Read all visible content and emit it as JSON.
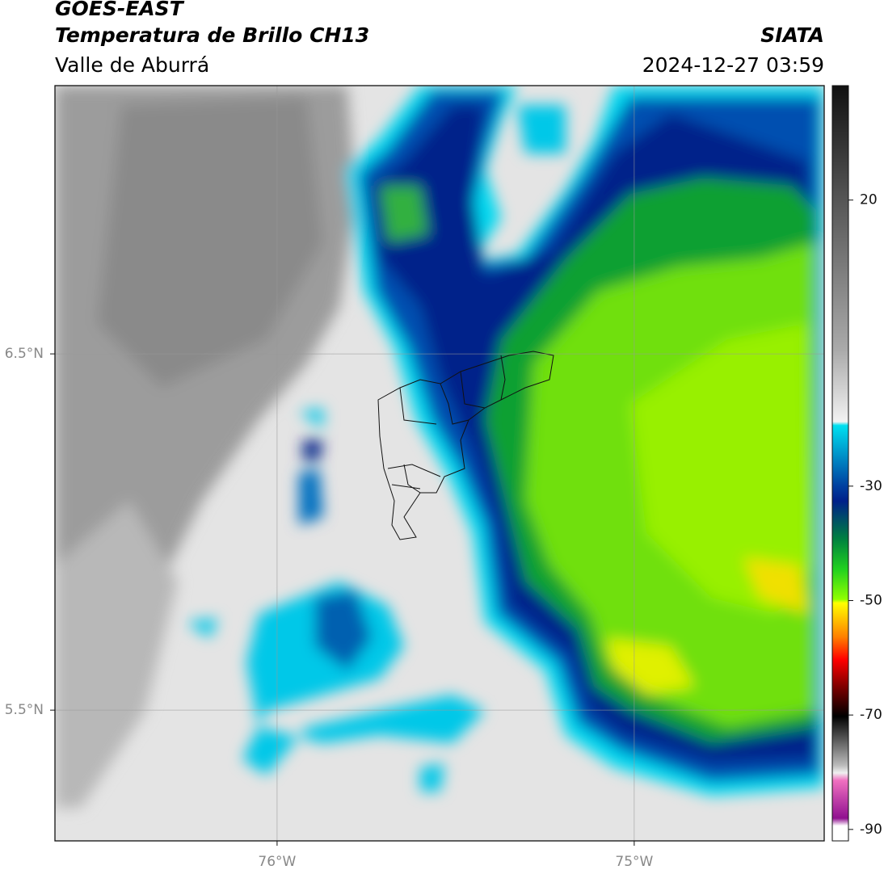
{
  "header": {
    "title": "GOES-EAST",
    "subtitle": "Temperatura de Brillo CH13",
    "region": "Valle de Aburrá",
    "source": "SIATA",
    "timestamp": "2024-12-27 03:59"
  },
  "map": {
    "xlim": [
      -76.622,
      -74.468
    ],
    "ylim": [
      5.133,
      7.253
    ],
    "xticks": [
      {
        "value": -76,
        "label": "76°W"
      },
      {
        "value": -75,
        "label": "75°W"
      }
    ],
    "yticks": [
      {
        "value": 6.5,
        "label": "6.5°N"
      },
      {
        "value": 5.5,
        "label": "5.5°N"
      }
    ],
    "grid": true
  },
  "colorbar": {
    "clim": [
      -92,
      40
    ],
    "ticks": [
      20,
      -30,
      -50,
      -70,
      -90
    ]
  }
}
